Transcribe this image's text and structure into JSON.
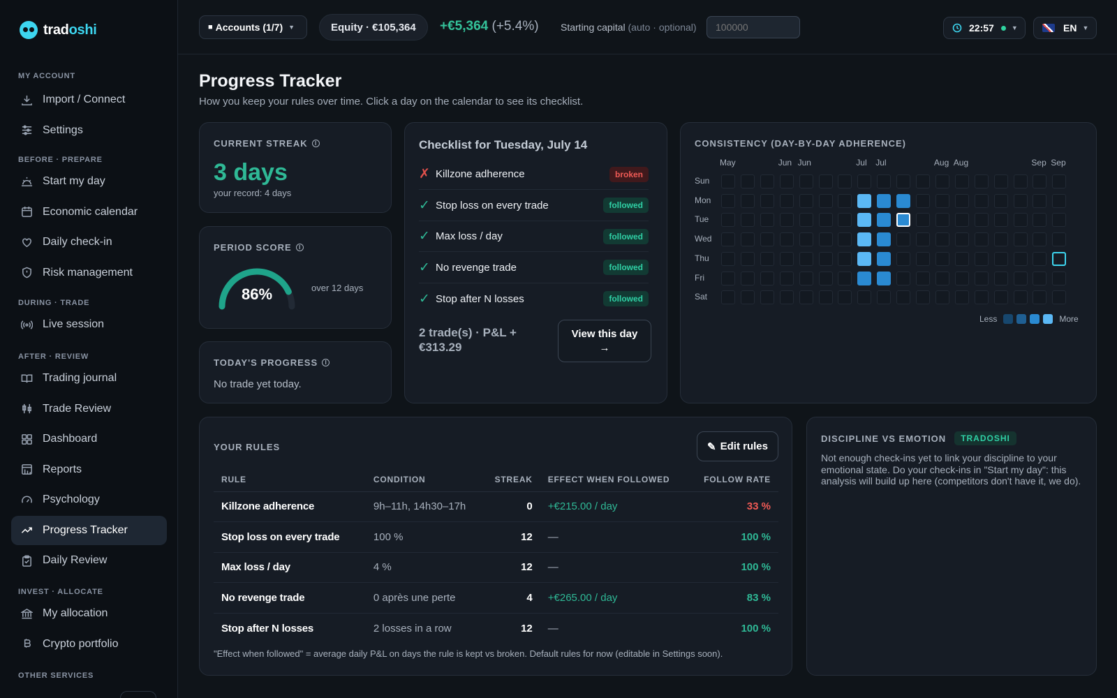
{
  "app": {
    "name_part1": "trad",
    "name_part2": "oshi"
  },
  "sidebar": {
    "sections": [
      {
        "label": "MY ACCOUNT",
        "items": [
          {
            "label": "Import / Connect",
            "icon": "download-icon"
          },
          {
            "label": "Settings",
            "icon": "sliders-icon"
          }
        ]
      },
      {
        "label": "BEFORE · PREPARE",
        "items": [
          {
            "label": "Start my day",
            "icon": "sunrise-icon"
          },
          {
            "label": "Economic calendar",
            "icon": "calendar-icon"
          },
          {
            "label": "Daily check-in",
            "icon": "heart-icon"
          },
          {
            "label": "Risk management",
            "icon": "shield-icon"
          }
        ]
      },
      {
        "label": "DURING · TRADE",
        "items": [
          {
            "label": "Live session",
            "icon": "broadcast-icon"
          }
        ]
      },
      {
        "label": "AFTER · REVIEW",
        "items": [
          {
            "label": "Trading journal",
            "icon": "book-icon"
          },
          {
            "label": "Trade Review",
            "icon": "candles-icon"
          },
          {
            "label": "Dashboard",
            "icon": "grid-icon"
          },
          {
            "label": "Reports",
            "icon": "report-icon"
          },
          {
            "label": "Psychology",
            "icon": "gauge-icon"
          },
          {
            "label": "Progress Tracker",
            "icon": "trend-icon",
            "active": true
          },
          {
            "label": "Daily Review",
            "icon": "clipboard-icon"
          }
        ]
      },
      {
        "label": "INVEST · ALLOCATE",
        "items": [
          {
            "label": "My allocation",
            "icon": "bank-icon"
          },
          {
            "label": "Crypto portfolio",
            "icon": "bitcoin-icon"
          }
        ]
      },
      {
        "label": "OTHER SERVICES",
        "items": []
      }
    ]
  },
  "topbar": {
    "accounts_label": "Accounts (1/7)",
    "equity_label": "Equity · €105,364",
    "pnl_value": "+€5,364",
    "pnl_pct": "(+5.4%)",
    "starting_capital_label": "Starting capital",
    "starting_capital_hint": "(auto · optional)",
    "starting_capital_placeholder": "100000",
    "clock": "22:57",
    "language": "EN"
  },
  "page": {
    "title": "Progress Tracker",
    "subtitle": "How you keep your rules over time. Click a day on the calendar to see its checklist."
  },
  "streak": {
    "label": "CURRENT STREAK",
    "value": "3 days",
    "record": "your record: 4 days"
  },
  "score": {
    "label": "PERIOD SCORE",
    "percent": 86,
    "value_text": "86%",
    "over": "over 12 days"
  },
  "today": {
    "label": "TODAY'S PROGRESS",
    "text": "No trade yet today."
  },
  "checklist": {
    "title": "Checklist for Tuesday, July 14",
    "items": [
      {
        "label": "Killzone adherence",
        "status": "broken",
        "mark": "✗"
      },
      {
        "label": "Stop loss on every trade",
        "status": "followed",
        "mark": "✓"
      },
      {
        "label": "Max loss / day",
        "status": "followed",
        "mark": "✓"
      },
      {
        "label": "No revenge trade",
        "status": "followed",
        "mark": "✓"
      },
      {
        "label": "Stop after N losses",
        "status": "followed",
        "mark": "✓"
      }
    ],
    "summary": "2 trade(s) · P&L + €313.29",
    "view_button": "View this day",
    "view_arrow": "→"
  },
  "consistency": {
    "label": "CONSISTENCY (DAY-BY-DAY ADHERENCE)",
    "months": [
      "May",
      "",
      "",
      "Jun",
      "Jun",
      "",
      "",
      "Jul",
      "Jul",
      "",
      "",
      "Aug",
      "Aug",
      "",
      "",
      "",
      "Sep",
      "Sep"
    ],
    "days": [
      "Sun",
      "Mon",
      "Tue",
      "Wed",
      "Thu",
      "Fri",
      "Sat"
    ],
    "weeks": 18,
    "levels": {
      "7": [
        0,
        4,
        4,
        4,
        4,
        3,
        0
      ],
      "8": [
        0,
        3,
        3,
        3,
        3,
        3,
        0
      ],
      "9": [
        0,
        3,
        3,
        0,
        0,
        0,
        0
      ]
    },
    "selected": {
      "week": 9,
      "day": 2
    },
    "today": {
      "week": 17,
      "day": 4
    },
    "legend_less": "Less",
    "legend_more": "More",
    "colors": {
      "l1": "#17476e",
      "l2": "#1f5f93",
      "l3": "#2a8ad2",
      "l4": "#5bb8f5",
      "empty": "#131921"
    }
  },
  "rules": {
    "label": "YOUR RULES",
    "edit_button": "Edit rules",
    "columns": [
      "RULE",
      "CONDITION",
      "STREAK",
      "EFFECT WHEN FOLLOWED",
      "FOLLOW RATE"
    ],
    "rows": [
      {
        "rule": "Killzone adherence",
        "condition": "9h–11h, 14h30–17h",
        "streak": "0",
        "effect": "+€215.00 / day",
        "rate": "33 %"
      },
      {
        "rule": "Stop loss on every trade",
        "condition": "100 %",
        "streak": "12",
        "effect": "—",
        "rate": "100 %"
      },
      {
        "rule": "Max loss / day",
        "condition": "4 %",
        "streak": "12",
        "effect": "—",
        "rate": "100 %"
      },
      {
        "rule": "No revenge trade",
        "condition": "0 après une perte",
        "streak": "4",
        "effect": "+€265.00 / day",
        "rate": "83 %"
      },
      {
        "rule": "Stop after N losses",
        "condition": "2 losses in a row",
        "streak": "12",
        "effect": "—",
        "rate": "100 %"
      }
    ],
    "note": "\"Effect when followed\" = average daily P&L on days the rule is kept vs broken. Default rules for now (editable in Settings soon)."
  },
  "discipline": {
    "label": "DISCIPLINE VS EMOTION",
    "tag": "TRADOSHI",
    "text": "Not enough check-ins yet to link your discipline to your emotional state. Do your check-ins in \"Start my day\": this analysis will build up here (competitors don't have it, we do)."
  },
  "colors": {
    "accent": "#2fb996",
    "negative": "#ef5a55",
    "brand": "#3dd6f0"
  }
}
